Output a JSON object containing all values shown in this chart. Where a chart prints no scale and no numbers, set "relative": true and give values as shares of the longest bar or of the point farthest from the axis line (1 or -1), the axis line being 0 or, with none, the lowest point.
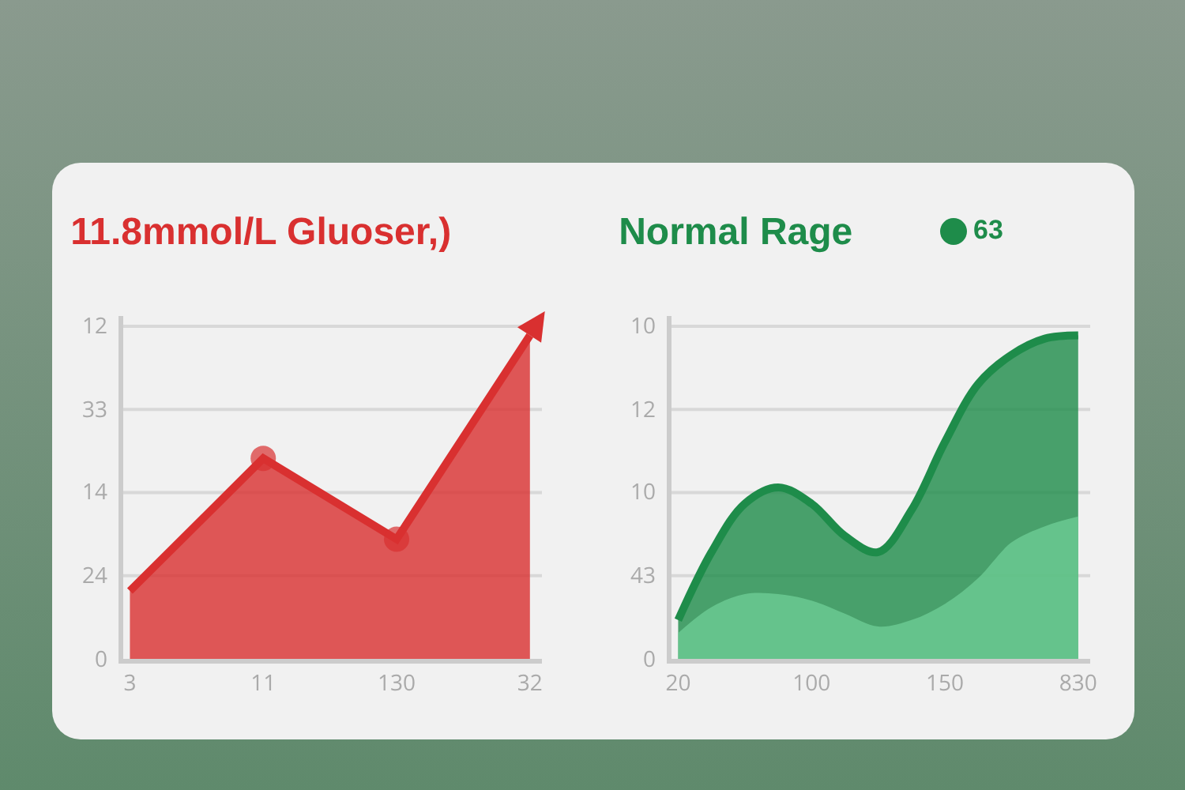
{
  "chart_data": [
    {
      "type": "area",
      "title": "11.8mmol/L Gluoser,)",
      "marker": "circle",
      "grid": "y",
      "relative": true,
      "categories": [
        "3",
        "11",
        "130",
        "32"
      ],
      "annotations": [
        "0",
        "24",
        "14",
        "33",
        "12"
      ],
      "series": [
        {
          "color": "#d93030",
          "values": [
            0.21,
            0.62,
            0.37,
            1
          ]
        }
      ]
    },
    {
      "type": "area",
      "title": "Normal Rage",
      "subtitle": "63",
      "grid": "y",
      "relative": true,
      "categories": [
        "20",
        null,
        null,
        null,
        "100",
        null,
        null,
        null,
        "150",
        null,
        null,
        null,
        "830"
      ],
      "annotations": [
        "0",
        "43",
        "10",
        "12",
        "10"
      ],
      "series": [
        {
          "color": "#1e8c4a",
          "values": [
            0.12,
            0.33,
            0.48,
            0.53,
            0.48,
            0.38,
            0.33,
            0.46,
            0.67,
            0.85,
            0.94,
            0.99,
            1.0
          ]
        },
        {
          "color": "#6fcf97",
          "values": [
            0.08,
            0.16,
            0.2,
            0.2,
            0.18,
            0.14,
            0.1,
            0.12,
            0.17,
            0.25,
            0.36,
            0.41,
            0.44
          ]
        }
      ]
    }
  ]
}
